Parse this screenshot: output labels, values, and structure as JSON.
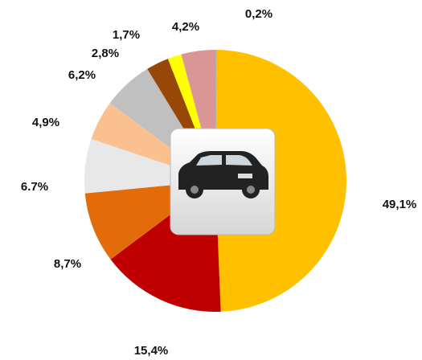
{
  "chart_data": {
    "type": "pie",
    "values": [
      0.2,
      49.1,
      15.4,
      8.7,
      6.7,
      4.9,
      6.2,
      2.8,
      1.7,
      4.2
    ],
    "value_labels": [
      "0,2%",
      "49,1%",
      "15,4%",
      "8,7%",
      "6.7%",
      "4,9%",
      "6,2%",
      "2,8%",
      "1,7%",
      "4,2%"
    ],
    "colors": [
      "#B0B0B0",
      "#FFC000",
      "#C00000",
      "#E36C0A",
      "#E8E8E8",
      "#FAC090",
      "#C0C0C0",
      "#974706",
      "#FFFF00",
      "#D99694"
    ]
  }
}
